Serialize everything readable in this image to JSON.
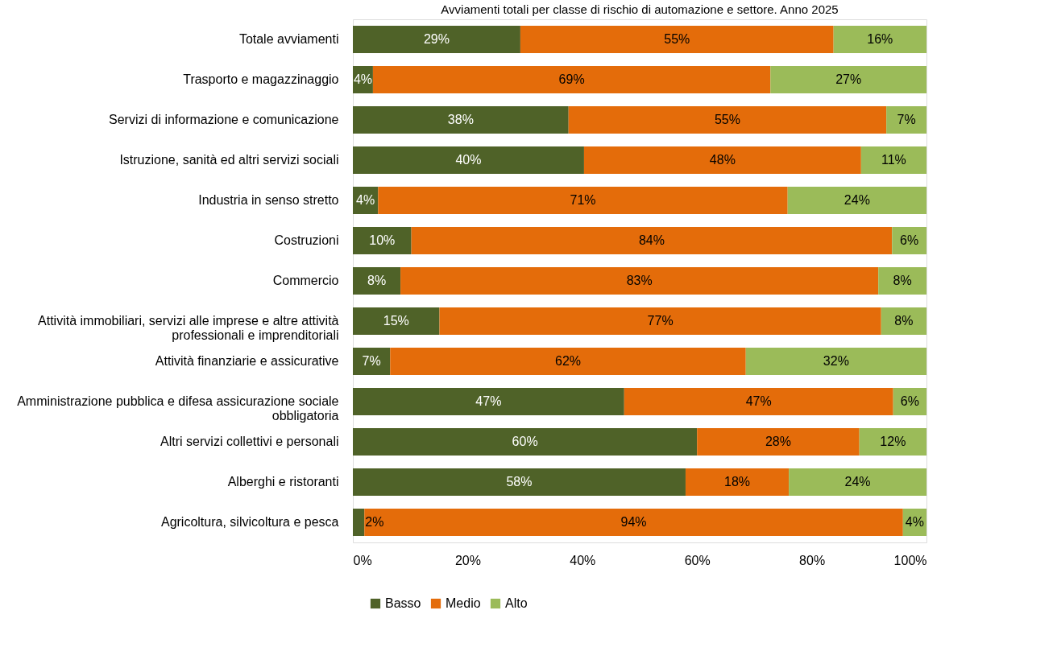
{
  "chart_data": {
    "type": "bar",
    "orientation": "horizontal",
    "stacked": true,
    "title": "Avviamenti totali per classe di rischio di automazione e settore. Anno 2025",
    "categories": [
      "Totale avviamenti",
      "Trasporto e magazzinaggio",
      "Servizi di informazione e comunicazione",
      "Istruzione, sanità ed altri servizi sociali",
      "Industria in senso stretto",
      "Costruzioni",
      "Commercio",
      "Attività immobiliari, servizi alle imprese e altre attività professionali e imprenditoriali",
      "Attività finanziarie e assicurative",
      "Amministrazione pubblica e difesa assicurazione sociale obbligatoria",
      "Altri servizi collettivi e personali",
      "Alberghi e ristoranti",
      "Agricoltura, silvicoltura e pesca"
    ],
    "series": [
      {
        "name": "Basso",
        "color": "#4f6228",
        "values": [
          29.2,
          3.5,
          37.6,
          40.3,
          4.4,
          10.2,
          8.3,
          15.1,
          6.5,
          47.3,
          60.0,
          58.0,
          2.0
        ],
        "value_labels": [
          "29%",
          "4%",
          "38%",
          "40%",
          "4%",
          "10%",
          "8%",
          "15%",
          "7%",
          "47%",
          "60%",
          "58%",
          "2%"
        ]
      },
      {
        "name": "Medio",
        "color": "#e46c0a",
        "values": [
          54.6,
          69.3,
          55.4,
          48.3,
          71.4,
          83.8,
          83.3,
          77.0,
          62.0,
          46.9,
          28.3,
          18.0,
          93.9
        ],
        "value_labels": [
          "55%",
          "69%",
          "55%",
          "48%",
          "71%",
          "84%",
          "83%",
          "77%",
          "62%",
          "47%",
          "28%",
          "18%",
          "94%"
        ]
      },
      {
        "name": "Alto",
        "color": "#9bbb59",
        "values": [
          16.2,
          27.2,
          7.0,
          11.4,
          24.2,
          6.0,
          8.4,
          7.9,
          31.5,
          5.8,
          11.7,
          24.0,
          4.1
        ],
        "value_labels": [
          "16%",
          "27%",
          "7%",
          "11%",
          "24%",
          "6%",
          "8%",
          "8%",
          "32%",
          "6%",
          "12%",
          "24%",
          "4%"
        ]
      }
    ],
    "xlim": [
      0,
      100
    ],
    "xticks": [
      {
        "value": 0,
        "label": "0%"
      },
      {
        "value": 20,
        "label": "20%"
      },
      {
        "value": 40,
        "label": "40%"
      },
      {
        "value": 60,
        "label": "60%"
      },
      {
        "value": 80,
        "label": "80%"
      },
      {
        "value": 100,
        "label": "100%"
      }
    ],
    "grid": false,
    "legend": "bottom"
  }
}
